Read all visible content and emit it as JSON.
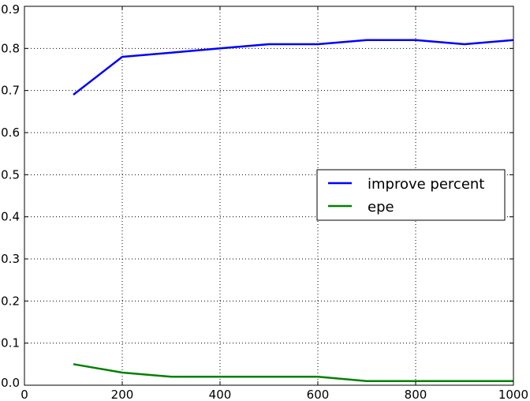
{
  "chart_data": {
    "type": "line",
    "title": "",
    "xlabel": "",
    "ylabel": "",
    "xlim": [
      0,
      1000
    ],
    "ylim": [
      0.0,
      0.9
    ],
    "x_ticks": [
      0,
      200,
      400,
      600,
      800,
      1000
    ],
    "y_ticks": [
      0.0,
      0.1,
      0.2,
      0.3,
      0.4,
      0.5,
      0.6,
      0.7,
      0.8,
      0.9
    ],
    "x_tick_labels": [
      "0",
      "200",
      "400",
      "600",
      "800",
      "1000"
    ],
    "y_tick_labels": [
      "0.0",
      "0.1",
      "0.2",
      "0.3",
      "0.4",
      "0.5",
      "0.6",
      "0.7",
      "0.8",
      "0.9"
    ],
    "grid": true,
    "legend_position": "center-right",
    "x": [
      100,
      200,
      300,
      400,
      500,
      600,
      700,
      800,
      900,
      1000
    ],
    "series": [
      {
        "name": "improve percent",
        "color": "#0000ff",
        "values": [
          0.69,
          0.78,
          0.79,
          0.8,
          0.81,
          0.81,
          0.82,
          0.82,
          0.81,
          0.82
        ]
      },
      {
        "name": "epe",
        "color": "#008000",
        "values": [
          0.05,
          0.03,
          0.02,
          0.02,
          0.02,
          0.02,
          0.01,
          0.01,
          0.01,
          0.01
        ]
      }
    ]
  }
}
